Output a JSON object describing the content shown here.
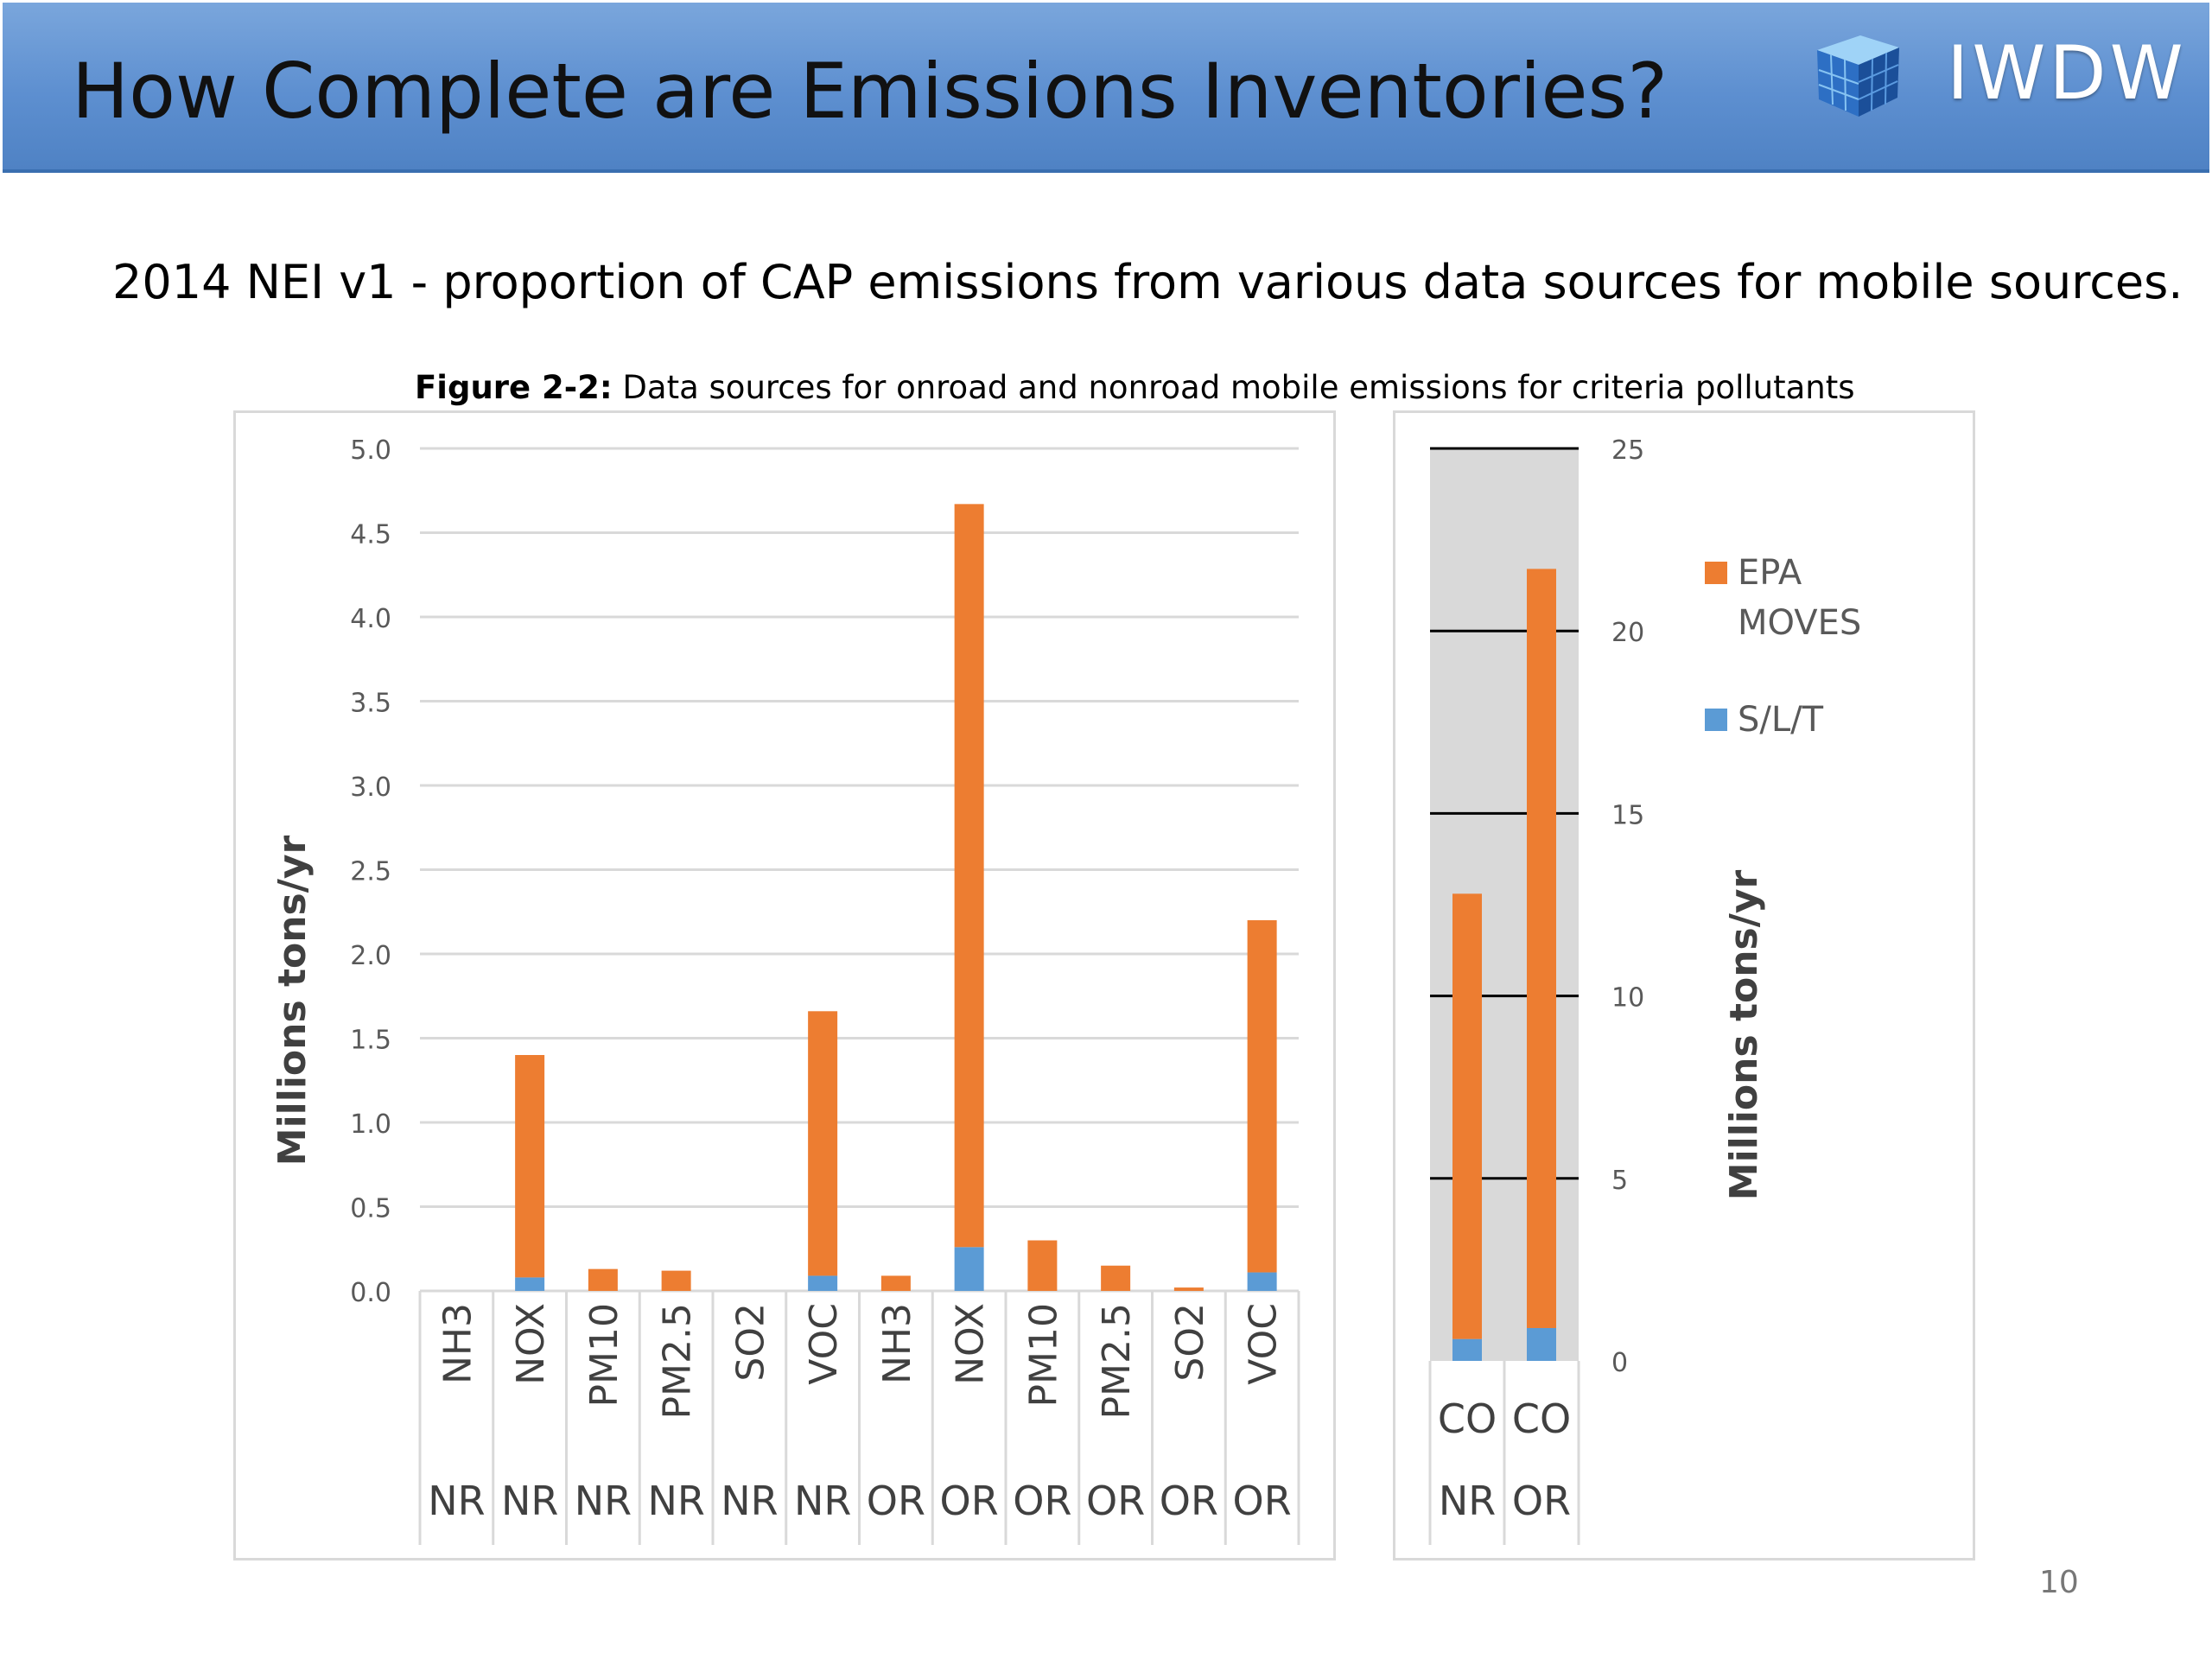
{
  "header": {
    "title": "How Complete are Emissions Inventories?",
    "logo_text": "IWDW"
  },
  "subtitle": "2014 NEI v1 - proportion of CAP emissions from various data sources for mobile sources.",
  "figure": {
    "caption_label": "Figure 2-2:",
    "caption_text": " Data sources for onroad and nonroad mobile emissions for criteria pollutants"
  },
  "page_number": "10",
  "colors": {
    "epa_moves": "#ed7d31",
    "slt": "#5b9bd5",
    "right_bg": "#d9d9d9"
  },
  "chart_data": [
    {
      "type": "bar",
      "stacked": true,
      "ylabel": "Millions tons/yr",
      "ylim": [
        0,
        5.0
      ],
      "yticks": [
        "0.0",
        "0.5",
        "1.0",
        "1.5",
        "2.0",
        "2.5",
        "3.0",
        "3.5",
        "4.0",
        "4.5",
        "5.0"
      ],
      "categories": [
        "NH3",
        "NOX",
        "PM10",
        "PM2.5",
        "SO2",
        "VOC",
        "NH3",
        "NOX",
        "PM10",
        "PM2.5",
        "SO2",
        "VOC"
      ],
      "groups": [
        "NR",
        "NR",
        "NR",
        "NR",
        "NR",
        "NR",
        "OR",
        "OR",
        "OR",
        "OR",
        "OR",
        "OR"
      ],
      "grid": true,
      "series": [
        {
          "name": "S/L/T",
          "values": [
            0,
            0.08,
            0,
            0,
            0,
            0.09,
            0,
            0.26,
            0,
            0,
            0,
            0.11
          ]
        },
        {
          "name": "EPA MOVES",
          "values": [
            0,
            1.32,
            0.13,
            0.12,
            0,
            1.57,
            0.09,
            4.41,
            0.3,
            0.15,
            0.02,
            2.09
          ]
        }
      ]
    },
    {
      "type": "bar",
      "stacked": true,
      "ylabel": "Millions tons/yr",
      "ylim": [
        0,
        25
      ],
      "yticks": [
        "0",
        "5",
        "10",
        "15",
        "20",
        "25"
      ],
      "categories": [
        "CO",
        "CO"
      ],
      "groups": [
        "NR",
        "OR"
      ],
      "grid": true,
      "legend": [
        "EPA MOVES",
        "S/L/T"
      ],
      "legend_position": "right",
      "series": [
        {
          "name": "S/L/T",
          "values": [
            0.6,
            0.9
          ]
        },
        {
          "name": "EPA MOVES",
          "values": [
            12.2,
            20.8
          ]
        }
      ]
    }
  ]
}
